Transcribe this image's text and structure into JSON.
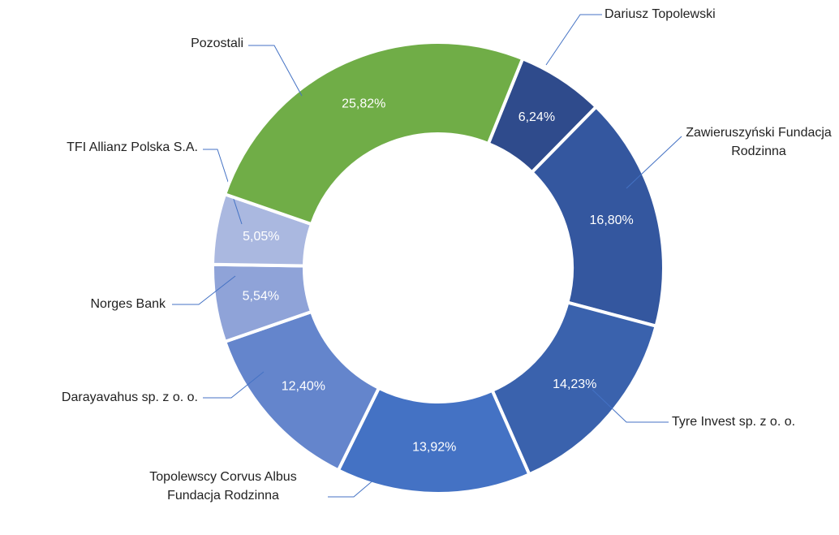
{
  "chart_data": {
    "type": "donut",
    "categories": [
      "Dariusz Topolewski",
      "Zawieruszyński Fundacja Rodzinna",
      "Tyre Invest sp. z o. o.",
      "Topolewscy Corvus Albus Fundacja Rodzinna",
      "Darayavahus sp. z o. o.",
      "Norges Bank",
      "TFI Allianz Polska S.A.",
      "Pozostali"
    ],
    "values": [
      6.24,
      16.8,
      14.23,
      13.92,
      12.4,
      5.54,
      5.05,
      25.82
    ],
    "value_labels": [
      "6,24%",
      "16,80%",
      "14,23%",
      "13,92%",
      "12,40%",
      "5,54%",
      "5,05%",
      "25,82%"
    ],
    "colors": [
      "#2f4b8c",
      "#34579f",
      "#3a62ad",
      "#4472c4",
      "#6485cc",
      "#8fa3d8",
      "#aab8e0",
      "#70ad47"
    ]
  }
}
